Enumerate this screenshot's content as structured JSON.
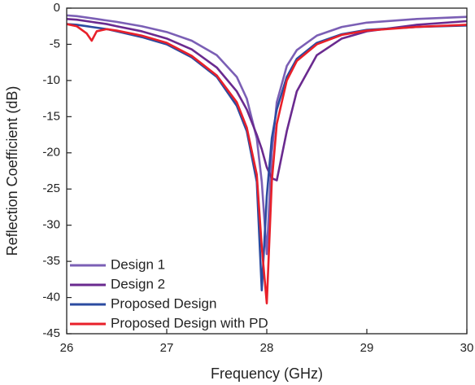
{
  "chart_data": {
    "type": "line",
    "x_label": "Frequency (GHz)",
    "y_label": "Reflection Coefficient (dB)",
    "x": [
      26,
      26.1,
      26.2,
      26.25,
      26.3,
      26.4,
      26.5,
      26.75,
      27,
      27.25,
      27.5,
      27.7,
      27.8,
      27.9,
      27.95,
      28,
      28.05,
      28.1,
      28.2,
      28.3,
      28.5,
      28.75,
      29,
      29.5,
      30
    ],
    "series": [
      {
        "name": "Design 1",
        "color": "#7b5fb5",
        "values": [
          -1,
          -1.1,
          -1.3,
          -1.4,
          -1.5,
          -1.7,
          -1.9,
          -2.5,
          -3.3,
          -4.5,
          -6.5,
          -9.5,
          -12.5,
          -18,
          -24,
          -34,
          -20,
          -13,
          -8,
          -5.8,
          -3.8,
          -2.6,
          -2,
          -1.5,
          -1.2
        ]
      },
      {
        "name": "Design 2",
        "color": "#6a2a8f",
        "values": [
          -1.5,
          -1.6,
          -1.8,
          -1.9,
          -2,
          -2.2,
          -2.5,
          -3.2,
          -4.2,
          -5.7,
          -8.2,
          -11.5,
          -14,
          -17.5,
          -19.5,
          -22,
          -23.5,
          -23.8,
          -17,
          -11.5,
          -6.5,
          -4.2,
          -3.2,
          -2.3,
          -1.8
        ]
      },
      {
        "name": "Proposed Design",
        "color": "#2b4ba0",
        "values": [
          -2.2,
          -2.3,
          -2.5,
          -2.6,
          -2.7,
          -2.9,
          -3.2,
          -4,
          -5,
          -6.8,
          -9.5,
          -13.5,
          -17,
          -24,
          -39,
          -26,
          -18,
          -14,
          -9.5,
          -7,
          -4.8,
          -3.6,
          -3,
          -2.6,
          -2.4
        ]
      },
      {
        "name": "Proposed Design with PD",
        "color": "#e8202a",
        "values": [
          -2.2,
          -2.5,
          -3.5,
          -4.5,
          -3.2,
          -2.9,
          -3.1,
          -3.8,
          -4.8,
          -6.6,
          -9.3,
          -13,
          -16.5,
          -23,
          -33,
          -40.8,
          -24,
          -16,
          -10,
          -7.3,
          -5,
          -3.7,
          -3.1,
          -2.6,
          -2.3
        ]
      }
    ],
    "xlim": [
      26,
      30
    ],
    "xticks": [
      26,
      27,
      28,
      29,
      30
    ],
    "ylim": [
      -45,
      0
    ],
    "yticks": [
      0,
      -5,
      -10,
      -15,
      -20,
      -25,
      -30,
      -35,
      -40,
      -45
    ],
    "legend": "lower left"
  }
}
